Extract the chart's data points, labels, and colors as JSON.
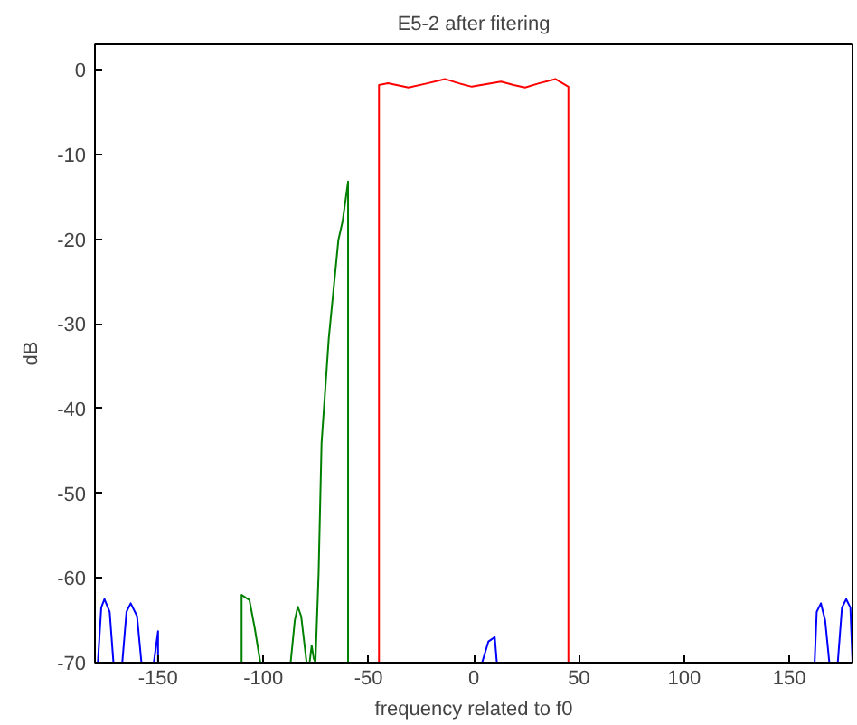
{
  "chart_data": {
    "type": "line",
    "title": "E5-2 after fitering",
    "xlabel": "frequency related to f0",
    "ylabel": "dB",
    "xlim": [
      -180,
      180
    ],
    "ylim": [
      -70,
      3
    ],
    "xticks": [
      -150,
      -100,
      -50,
      0,
      50,
      100,
      150
    ],
    "yticks": [
      -70,
      -60,
      -50,
      -40,
      -30,
      -20,
      -10,
      0
    ],
    "grid": false,
    "series": [
      {
        "color": "#0000ff",
        "x": [
          -178.6,
          -177,
          -175.5,
          -173,
          -171.2,
          null,
          -167,
          -165,
          -163,
          -160,
          -157.9,
          null,
          -152,
          -150,
          -150,
          null,
          4,
          7,
          10,
          11,
          null,
          162,
          163,
          165,
          167,
          169,
          null,
          173,
          175,
          177,
          179,
          180
        ],
        "values": [
          -70,
          -63.5,
          -62.5,
          -64,
          -70,
          null,
          -70,
          -64,
          -63,
          -64.5,
          -70,
          null,
          -70,
          -66.3,
          -70,
          null,
          -70,
          -67.5,
          -67,
          -70,
          null,
          -70,
          -64,
          -63,
          -65,
          -70,
          null,
          -70,
          -63.5,
          -62.5,
          -63.5,
          -70
        ]
      },
      {
        "color": "#008000",
        "x": [
          -110.3,
          -110.3,
          -108.5,
          -106.6,
          -104,
          -101.4,
          null,
          -87,
          -85,
          -83.6,
          -82,
          -79.4,
          null,
          -78,
          -77,
          -76,
          -75.2,
          -73.7,
          -72.3,
          -68.9,
          -64.3,
          -62.3,
          -59.7,
          -59.7
        ],
        "values": [
          -70,
          -62,
          -62.3,
          -62.6,
          -66,
          -70,
          null,
          -70,
          -65,
          -63.4,
          -64.5,
          -70,
          null,
          -70,
          -68,
          -69.5,
          -70,
          -59.4,
          -44.1,
          -31.8,
          -20.1,
          -17.9,
          -13.2,
          -70
        ]
      },
      {
        "color": "#ff0000",
        "x": [
          -45,
          -45,
          -40.7,
          -31,
          -22,
          -13.7,
          -7,
          -0.9,
          6,
          13,
          19,
          24.4,
          31,
          38.8,
          45,
          45
        ],
        "values": [
          -70,
          -1.8,
          -1.6,
          -2.1,
          -1.6,
          -1.1,
          -1.6,
          -2.0,
          -1.7,
          -1.4,
          -1.8,
          -2.1,
          -1.6,
          -1.1,
          -2.0,
          -70
        ]
      }
    ]
  }
}
